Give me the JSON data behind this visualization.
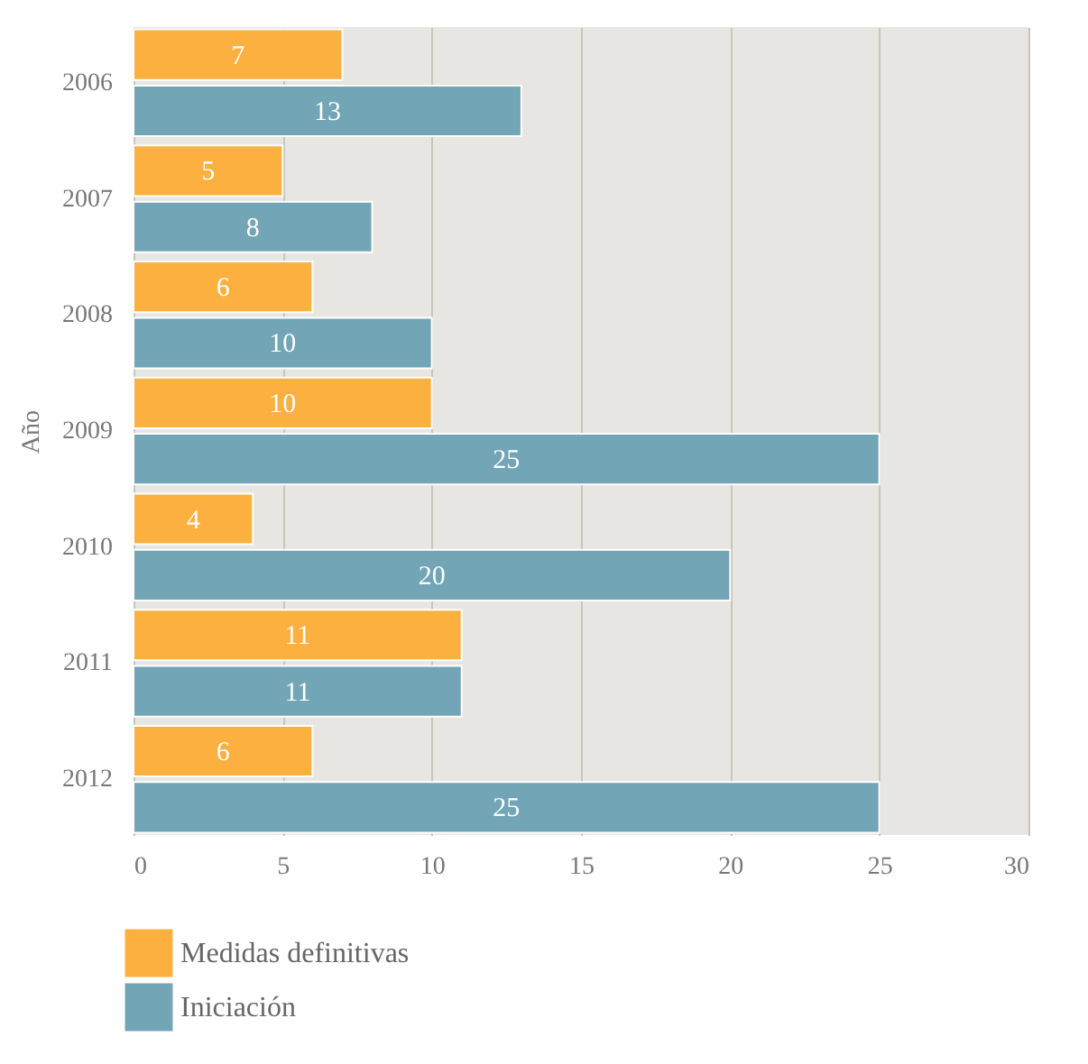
{
  "chart_data": {
    "type": "bar",
    "orientation": "horizontal",
    "ylabel": "Año",
    "categories": [
      "2006",
      "2007",
      "2008",
      "2009",
      "2010",
      "2011",
      "2012"
    ],
    "series": [
      {
        "name": "Medidas definitivas",
        "color": "#fbb040",
        "values": [
          7,
          5,
          6,
          10,
          4,
          11,
          6
        ]
      },
      {
        "name": "Iniciación",
        "color": "#72a5b5",
        "values": [
          13,
          8,
          10,
          25,
          20,
          11,
          25
        ]
      }
    ],
    "xlim": [
      0,
      30
    ],
    "xticks": [
      0,
      5,
      10,
      15,
      20,
      25,
      30
    ],
    "grid": "x",
    "data_labels": true,
    "legend": "bottom left"
  }
}
